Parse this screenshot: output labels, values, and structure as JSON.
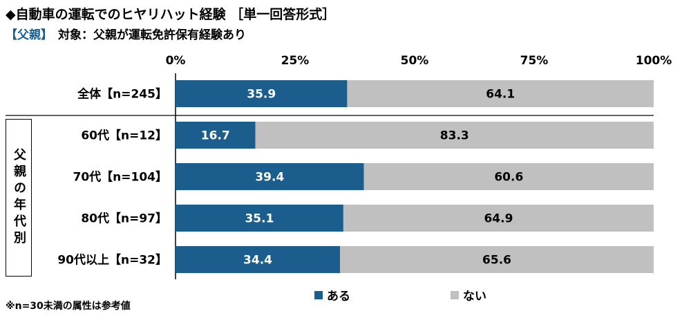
{
  "header": {
    "title": "◆自動車の運転でのヒヤリハット経験 ［単一回答形式］",
    "tag": "【父親】",
    "target": "対象：父親が運転免許保有経験あり"
  },
  "group_label": "父親の年代別",
  "footnote": "※n=30未満の属性は参考値",
  "colors": {
    "aru": "#1b5e8d",
    "nai": "#c0c0c0"
  },
  "chart_data": {
    "type": "bar",
    "orientation": "horizontal",
    "stacked": true,
    "percent": true,
    "xlim": [
      0,
      100
    ],
    "x_ticks": [
      "0%",
      "25%",
      "50%",
      "75%",
      "100%"
    ],
    "categories": [
      "全体【n=245】",
      "60代【n=12】",
      "70代【n=104】",
      "80代【n=97】",
      "90代以上【n=32】"
    ],
    "series": [
      {
        "name": "ある",
        "values": [
          35.9,
          16.7,
          39.4,
          35.1,
          34.4
        ],
        "color": "#1b5e8d"
      },
      {
        "name": "ない",
        "values": [
          64.1,
          83.3,
          60.6,
          64.9,
          65.6
        ],
        "color": "#c0c0c0"
      }
    ],
    "legend_position": "bottom",
    "grid": false
  }
}
